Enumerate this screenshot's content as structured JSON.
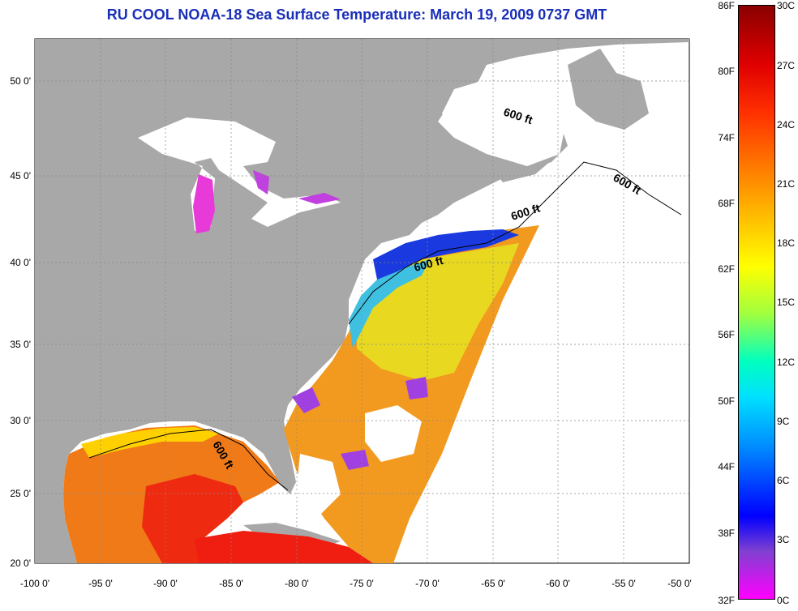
{
  "title": "RU COOL  NOAA-18  Sea Surface Temperature:  March 19, 2009 0737 GMT",
  "longitude_ticks": [
    "-100 0'",
    "-95 0'",
    "-90 0'",
    "-85 0'",
    "-80 0'",
    "-75 0'",
    "-70 0'",
    "-65 0'",
    "-60 0'",
    "-55 0'",
    "-50 0'"
  ],
  "latitude_ticks": [
    "50 0'",
    "45 0'",
    "40 0'",
    "35 0'",
    "30 0'",
    "25 0'",
    "20 0'"
  ],
  "contour_label": "600 ft",
  "colorbar": {
    "fahrenheit": [
      "86F",
      "80F",
      "74F",
      "68F",
      "62F",
      "56F",
      "50F",
      "44F",
      "38F",
      "32F"
    ],
    "celsius": [
      "30C",
      "27C",
      "24C",
      "21C",
      "18C",
      "15C",
      "12C",
      "9C",
      "6C",
      "3C",
      "0C"
    ]
  },
  "colors": {
    "land": "#a8a8a8",
    "title": "#1a2fb8",
    "no_data": "#ffffff"
  }
}
